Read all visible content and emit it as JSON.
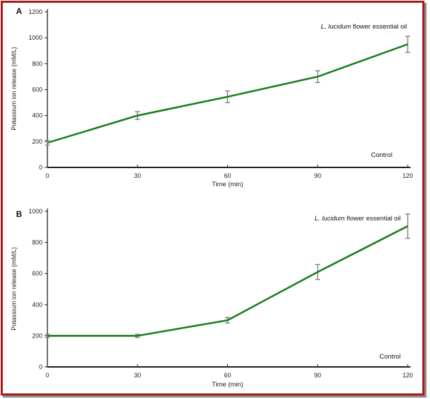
{
  "figure": {
    "border_color": "#a21c1c",
    "shadow_color": "#8f8f8f",
    "background": "#ffffff"
  },
  "chart_data": [
    {
      "type": "line",
      "panel_label": "A",
      "x": [
        0,
        30,
        60,
        90,
        120
      ],
      "xticks": [
        0,
        30,
        60,
        90,
        120
      ],
      "xlabel": "Time (min)",
      "ylabel": "Potassium ion release (mM/L)",
      "ylim": [
        0,
        1200
      ],
      "yticks": [
        0,
        200,
        400,
        600,
        800,
        1000,
        1200
      ],
      "grid": false,
      "legend_position": "top-right-inline",
      "series": [
        {
          "name": "L. lucidum flower essential oil",
          "name_italic_part": "L. lucidum",
          "name_regular_part": " flower essential oil",
          "values": [
            190,
            400,
            545,
            700,
            950
          ],
          "errors": [
            18,
            30,
            45,
            45,
            62
          ],
          "color": "#1a7d20"
        },
        {
          "name": "Control",
          "values": [
            0,
            0,
            0,
            0,
            0
          ],
          "errors": [
            0,
            0,
            0,
            0,
            0
          ],
          "color": "#1f1f1f"
        }
      ]
    },
    {
      "type": "line",
      "panel_label": "B",
      "x": [
        0,
        30,
        60,
        90,
        120
      ],
      "xticks": [
        0,
        30,
        60,
        90,
        120
      ],
      "xlabel": "Time (min)",
      "ylabel": "Potassium ion release (mM/L)",
      "ylim": [
        0,
        1000
      ],
      "yticks": [
        0,
        200,
        400,
        600,
        800,
        1000
      ],
      "grid": false,
      "legend_position": "top-right-inline",
      "series": [
        {
          "name": "L. lucidum flower essential oil",
          "name_italic_part": "L. lucidum",
          "name_regular_part": " flower essential oil",
          "values": [
            200,
            200,
            300,
            610,
            905
          ],
          "errors": [
            10,
            10,
            18,
            48,
            78
          ],
          "color": "#1a7d20"
        },
        {
          "name": "Control",
          "values": [
            0,
            0,
            0,
            0,
            0
          ],
          "errors": [
            0,
            0,
            0,
            0,
            0
          ],
          "color": "#1f1f1f"
        }
      ]
    }
  ]
}
